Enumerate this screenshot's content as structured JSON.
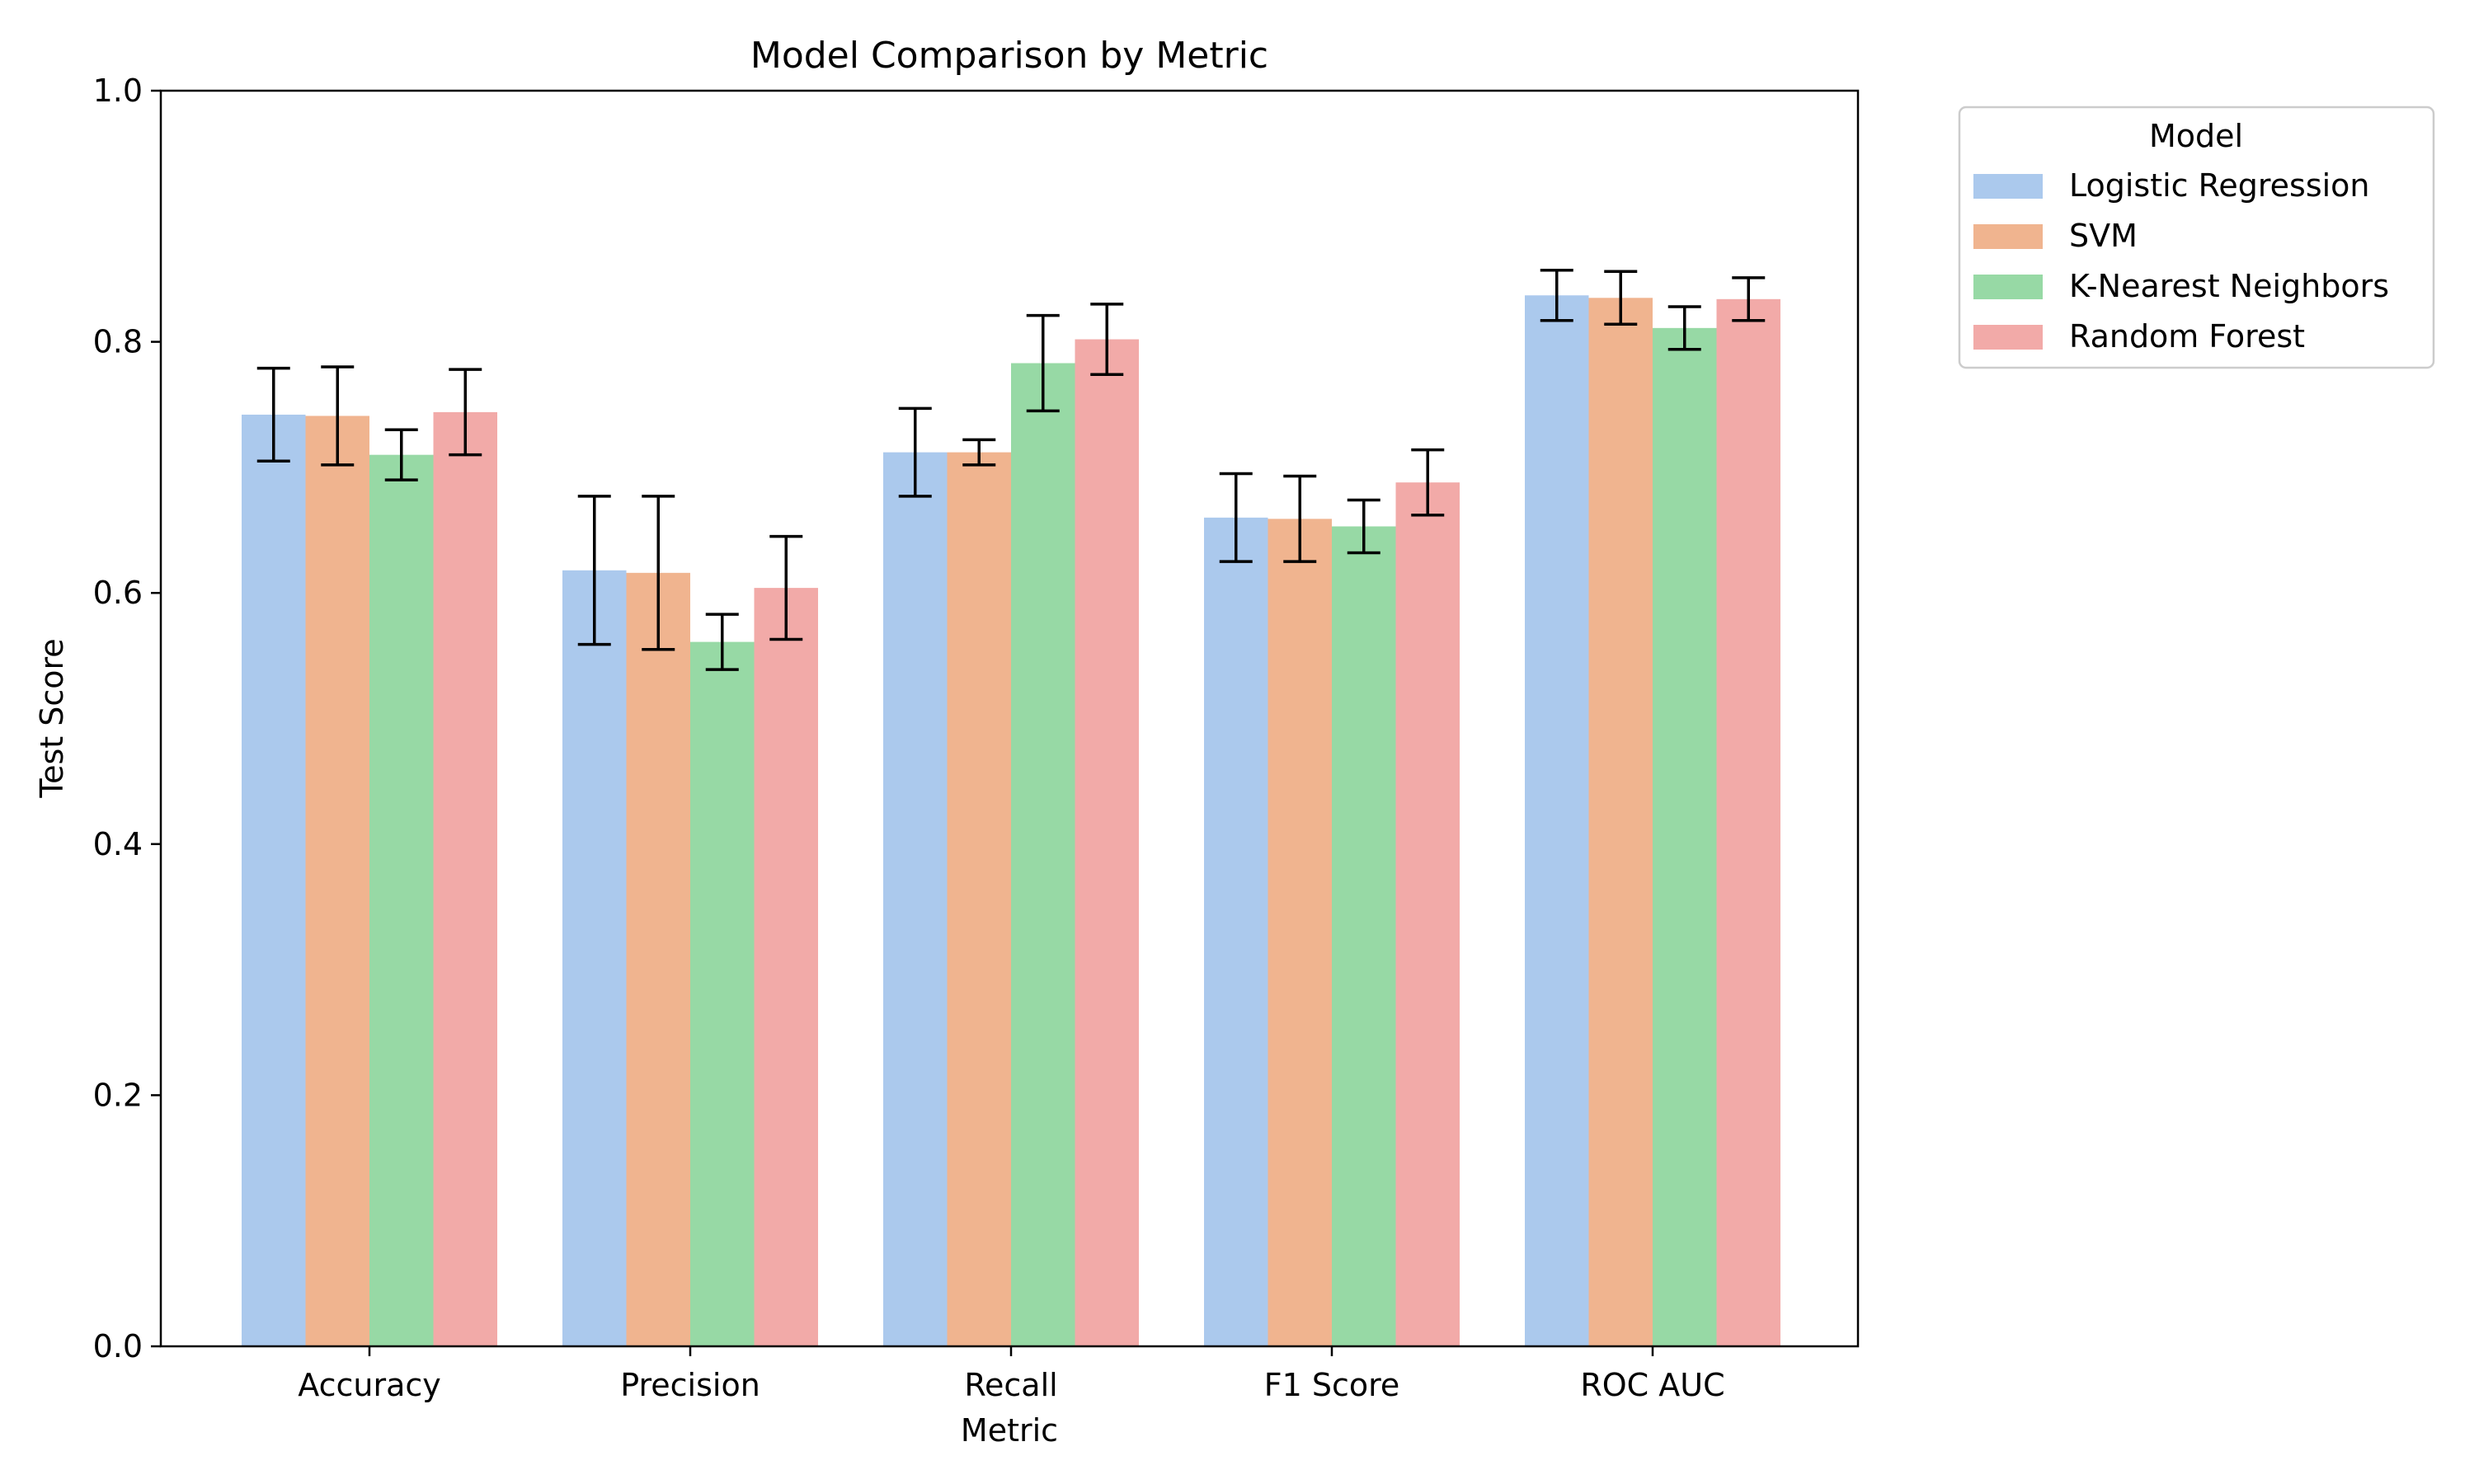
{
  "chart_data": {
    "type": "bar",
    "title": "Model Comparison by Metric",
    "xlabel": "Metric",
    "ylabel": "Test Score",
    "ylim": [
      0,
      1.0
    ],
    "yticks": [
      "0.0",
      "0.2",
      "0.4",
      "0.6",
      "0.8",
      "1.0"
    ],
    "ytick_values": [
      0.0,
      0.2,
      0.4,
      0.6,
      0.8,
      1.0
    ],
    "grid": false,
    "categories": [
      "Accuracy",
      "Precision",
      "Recall",
      "F1 Score",
      "ROC AUC"
    ],
    "legend": {
      "title": "Model",
      "placement": "outside-top-right"
    },
    "series": [
      {
        "name": "Logistic Regression",
        "color": "#abc9ed",
        "values": [
          0.742,
          0.618,
          0.712,
          0.66,
          0.837
        ],
        "errors": [
          0.037,
          0.059,
          0.035,
          0.035,
          0.02
        ]
      },
      {
        "name": "SVM",
        "color": "#f0b48f",
        "values": [
          0.741,
          0.616,
          0.712,
          0.659,
          0.835
        ],
        "errors": [
          0.039,
          0.061,
          0.01,
          0.034,
          0.021
        ]
      },
      {
        "name": "K-Nearest Neighbors",
        "color": "#97d9a5",
        "values": [
          0.71,
          0.561,
          0.783,
          0.653,
          0.811
        ],
        "errors": [
          0.02,
          0.022,
          0.038,
          0.021,
          0.017
        ]
      },
      {
        "name": "Random Forest",
        "color": "#f2aaa8",
        "values": [
          0.744,
          0.604,
          0.802,
          0.688,
          0.834
        ],
        "errors": [
          0.034,
          0.041,
          0.028,
          0.026,
          0.017
        ]
      }
    ]
  }
}
